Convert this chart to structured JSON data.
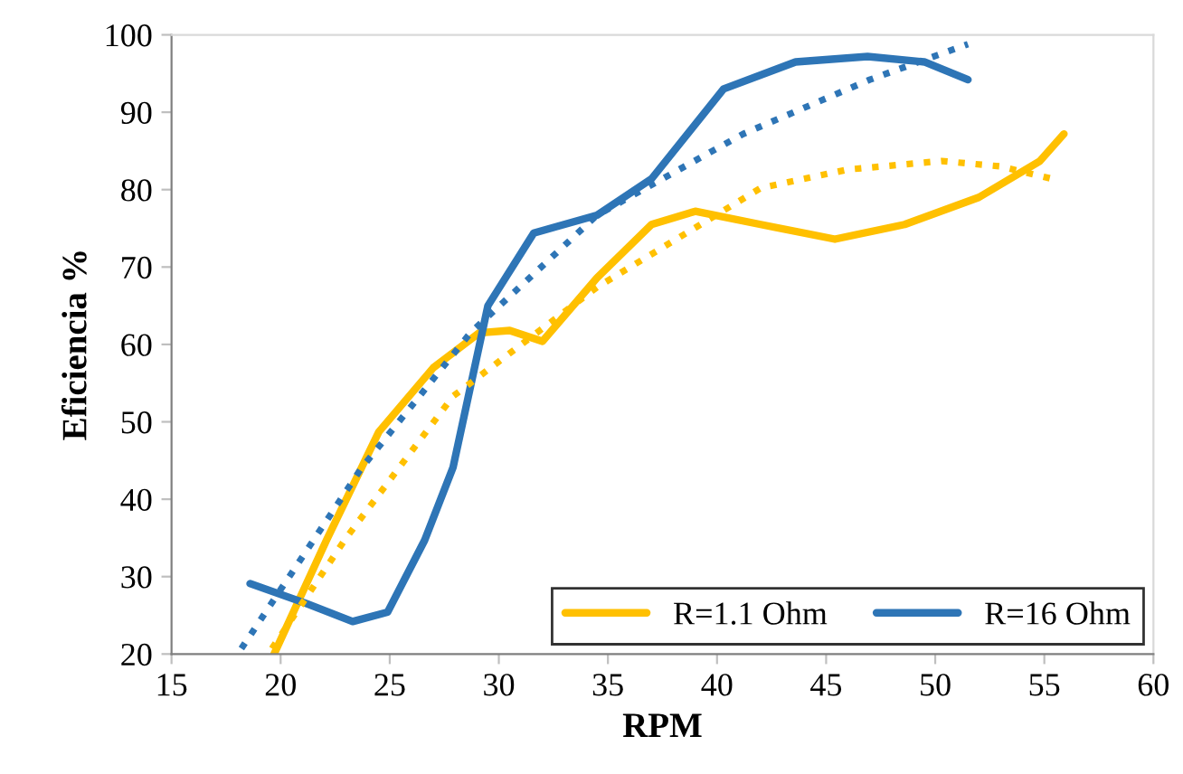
{
  "chart_data": {
    "type": "line",
    "xlabel": "RPM",
    "ylabel": "Eficiencia %",
    "xlim": [
      15,
      60
    ],
    "ylim": [
      20,
      100
    ],
    "xticks": [
      15,
      20,
      25,
      30,
      35,
      40,
      45,
      50,
      55,
      60
    ],
    "yticks": [
      20,
      30,
      40,
      50,
      60,
      70,
      80,
      90,
      100
    ],
    "grid": false,
    "legend": "bottom right",
    "marker": "none",
    "series": [
      {
        "name": "R=1.1 Ohm",
        "color": "#ffc000",
        "line_style": "solid",
        "x": [
          19.7,
          22.1,
          24.5,
          27.0,
          29.1,
          30.5,
          32.0,
          34.5,
          37.0,
          39.0,
          42.0,
          45.4,
          48.6,
          52.0,
          54.8,
          55.9
        ],
        "values": [
          20,
          34.7,
          48.7,
          57.0,
          61.5,
          61.8,
          60.4,
          68.6,
          75.5,
          77.2,
          75.5,
          73.6,
          75.5,
          79.0,
          83.7,
          87.2
        ]
      },
      {
        "name": "R=16 Ohm",
        "color": "#2e75b6",
        "line_style": "solid",
        "x": [
          18.6,
          21.2,
          23.3,
          24.9,
          26.6,
          27.9,
          29.5,
          31.6,
          34.5,
          37.0,
          40.3,
          43.6,
          46.9,
          49.5,
          51.5
        ],
        "values": [
          29.1,
          26.5,
          24.2,
          25.4,
          34.7,
          44.1,
          65.0,
          74.4,
          76.7,
          81.4,
          93.0,
          96.5,
          97.2,
          96.5,
          94.2
        ]
      },
      {
        "type": "line",
        "color": "#ffc000",
        "line_style": "dotted",
        "x": [
          19.6,
          23.0,
          27.9,
          34.5,
          42.0,
          46.0,
          50.3,
          53.0,
          55.5
        ],
        "values": [
          20.7,
          35.0,
          53.3,
          67.4,
          80.2,
          82.6,
          83.7,
          83.0,
          81.3
        ]
      },
      {
        "type": "line",
        "color": "#2e75b6",
        "line_style": "dotted",
        "x": [
          18.2,
          23.7,
          28.7,
          34.5,
          41.2,
          47.0,
          51.5
        ],
        "values": [
          20.7,
          44.0,
          61.5,
          76.7,
          87.2,
          94.2,
          98.8
        ]
      }
    ]
  }
}
